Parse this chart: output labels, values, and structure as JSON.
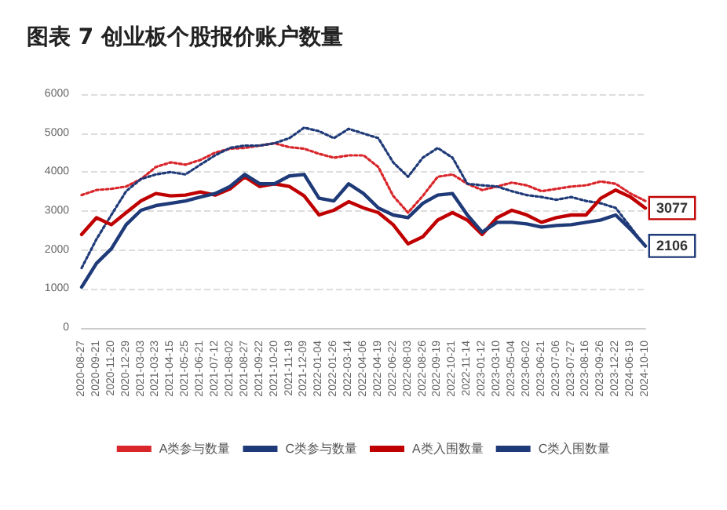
{
  "chart_data": {
    "type": "line",
    "title": "图表 7 创业板个股报价账户数量",
    "categories": [
      "2020-08-27",
      "2020-09-21",
      "2020-11-20",
      "2020-12-29",
      "2021-03-03",
      "2021-03-23",
      "2021-04-15",
      "2021-05-25",
      "2021-06-21",
      "2021-07-12",
      "2021-08-02",
      "2021-08-27",
      "2021-09-22",
      "2021-10-20",
      "2021-11-19",
      "2021-12-09",
      "2022-01-04",
      "2022-01-26",
      "2022-03-14",
      "2022-04-06",
      "2022-04-19",
      "2022-06-22",
      "2022-08-03",
      "2022-08-26",
      "2022-09-19",
      "2022-10-21",
      "2022-11-14",
      "2023-01-12",
      "2023-03-10",
      "2023-05-04",
      "2023-06-02",
      "2023-06-21",
      "2023-07-06",
      "2023-07-27",
      "2023-08-16",
      "2023-09-26",
      "2023-12-22",
      "2024-06-19",
      "2024-10-10"
    ],
    "series": [
      {
        "name": "A类参与数量",
        "color": "#d9262b",
        "line_style": "dotted",
        "values": [
          3410,
          3540,
          3570,
          3630,
          3820,
          4130,
          4250,
          4190,
          4310,
          4500,
          4600,
          4620,
          4680,
          4740,
          4640,
          4600,
          4470,
          4370,
          4430,
          4430,
          4130,
          3390,
          2960,
          3390,
          3880,
          3940,
          3700,
          3540,
          3630,
          3730,
          3660,
          3510,
          3570,
          3630,
          3660,
          3760,
          3700,
          3450,
          3260
        ]
      },
      {
        "name": "C类参与数量",
        "color": "#1f3a78",
        "line_style": "dotted",
        "values": [
          1540,
          2280,
          2900,
          3510,
          3820,
          3940,
          4000,
          3940,
          4190,
          4430,
          4620,
          4680,
          4680,
          4740,
          4870,
          5140,
          5050,
          4870,
          5110,
          4990,
          4870,
          4250,
          3880,
          4370,
          4620,
          4370,
          3700,
          3660,
          3630,
          3510,
          3410,
          3360,
          3290,
          3360,
          3260,
          3200,
          3080,
          2590,
          2090
        ]
      },
      {
        "name": "A类入围数量",
        "color": "#c00000",
        "line_style": "solid",
        "values": [
          2400,
          2830,
          2650,
          2960,
          3260,
          3450,
          3390,
          3410,
          3490,
          3410,
          3570,
          3880,
          3630,
          3700,
          3630,
          3390,
          2900,
          3020,
          3240,
          3080,
          2960,
          2650,
          2160,
          2340,
          2770,
          2960,
          2770,
          2400,
          2830,
          3020,
          2900,
          2710,
          2830,
          2900,
          2900,
          3330,
          3540,
          3360,
          3077
        ],
        "value_labels": [
          null,
          null,
          null,
          null,
          null,
          null,
          null,
          null,
          null,
          null,
          null,
          null,
          null,
          null,
          null,
          null,
          null,
          null,
          null,
          null,
          null,
          null,
          null,
          null,
          null,
          null,
          null,
          null,
          null,
          null,
          null,
          null,
          null,
          null,
          null,
          null,
          null,
          null,
          "3077"
        ]
      },
      {
        "name": "C类入围数量",
        "color": "#1f3a78",
        "line_style": "solid",
        "values": [
          1050,
          1660,
          2030,
          2650,
          3020,
          3140,
          3200,
          3260,
          3360,
          3450,
          3630,
          3940,
          3700,
          3700,
          3900,
          3940,
          3330,
          3260,
          3700,
          3450,
          3080,
          2900,
          2830,
          3200,
          3410,
          3450,
          2900,
          2460,
          2710,
          2710,
          2670,
          2590,
          2630,
          2650,
          2710,
          2770,
          2900,
          2530,
          2106
        ],
        "value_labels": [
          null,
          null,
          null,
          null,
          null,
          null,
          null,
          null,
          null,
          null,
          null,
          null,
          null,
          null,
          null,
          null,
          null,
          null,
          null,
          null,
          null,
          null,
          null,
          null,
          null,
          null,
          null,
          null,
          null,
          null,
          null,
          null,
          null,
          null,
          null,
          null,
          null,
          null,
          "2106"
        ]
      }
    ],
    "ylim": [
      0,
      6000
    ],
    "yticks": [
      0,
      1000,
      2000,
      3000,
      4000,
      5000,
      6000
    ],
    "grid": "y",
    "legend": "bottom",
    "marker": "none"
  }
}
